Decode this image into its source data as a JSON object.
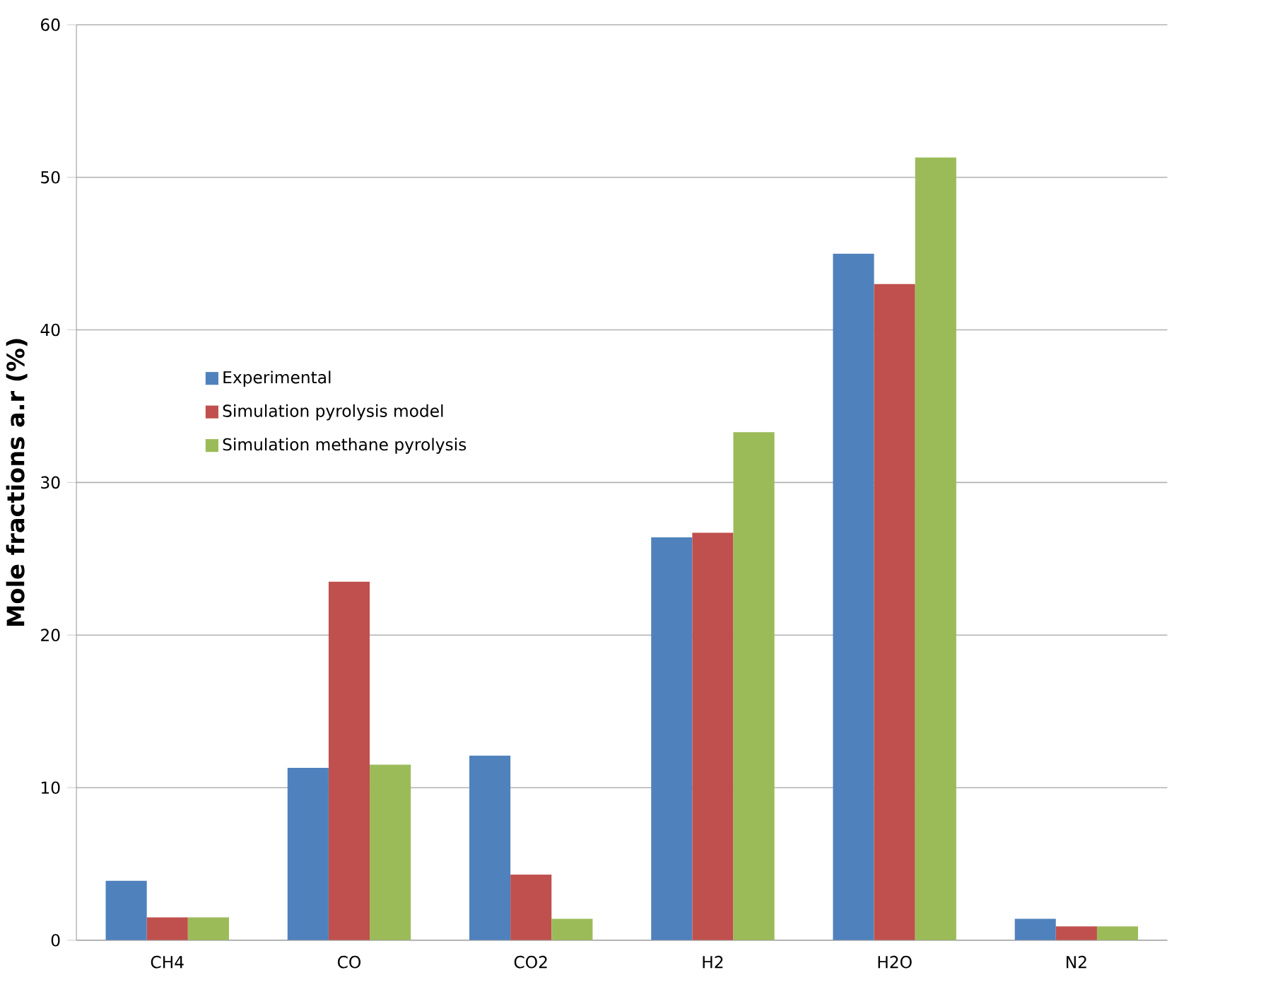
{
  "chart_data": {
    "type": "bar",
    "ylabel": "Mole fractions a.r (%)",
    "categories": [
      "CH4",
      "CO",
      "CO2",
      "H2",
      "H2O",
      "N2"
    ],
    "series": [
      {
        "name": "Experimental",
        "color": "#4f81bd",
        "values": [
          3.9,
          11.3,
          12.1,
          26.4,
          45.0,
          1.4
        ]
      },
      {
        "name": "Simulation pyrolysis model",
        "color": "#c0504d",
        "values": [
          1.5,
          23.5,
          4.3,
          26.7,
          43.0,
          0.9
        ]
      },
      {
        "name": "Simulation methane pyrolysis",
        "color": "#9bbb59",
        "values": [
          1.5,
          11.5,
          1.4,
          33.3,
          51.3,
          0.9
        ]
      }
    ],
    "ylim": [
      0,
      60
    ],
    "yticks": [
      0,
      10,
      20,
      30,
      40,
      50,
      60
    ],
    "grid": "y",
    "legend": "left"
  }
}
